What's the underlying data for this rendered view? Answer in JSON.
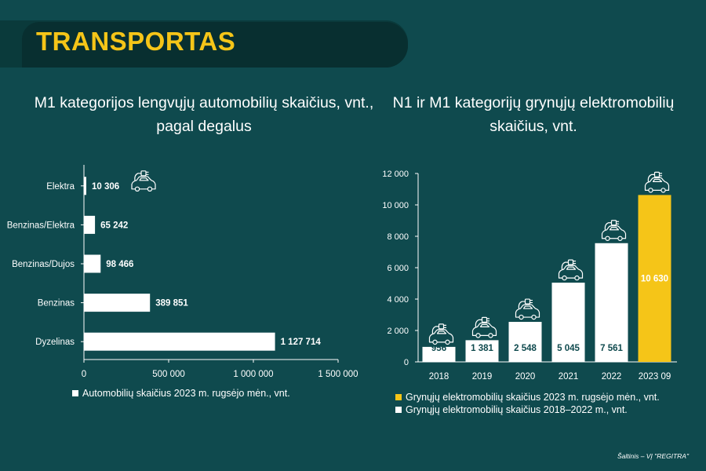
{
  "header": {
    "title": "TRANSPORTAS"
  },
  "colors": {
    "background": "#0f4a4e",
    "accent": "#f5c518",
    "bar": "#ffffff",
    "value_text": "#0f4a4e"
  },
  "chart_data": [
    {
      "type": "bar",
      "orientation": "horizontal",
      "title": "M1 kategorijos lengvųjų automobilių skaičius, vnt., pagal degalus",
      "categories": [
        "Elektra",
        "Benzinas/Elektra",
        "Benzinas/Dujos",
        "Benzinas",
        "Dyzelinas"
      ],
      "value_labels": [
        "10 306",
        "65 242",
        "98 466",
        "389 851",
        "1 127 714"
      ],
      "series": [
        {
          "name": "Automobilių skaičius 2023 m. rugsėjo mėn., vnt.",
          "values": [
            10306,
            65242,
            98466,
            389851,
            1127714
          ],
          "color": "#ffffff"
        }
      ],
      "xlim": [
        0,
        1500000
      ],
      "xticks": [
        0,
        500000,
        1000000,
        1500000
      ],
      "xtick_labels": [
        "0",
        "500 000",
        "1 000 000",
        "1 500 000"
      ],
      "grid": false,
      "legend_position": "bottom",
      "icon": "electric-car-icon"
    },
    {
      "type": "bar",
      "orientation": "vertical",
      "title": "N1 ir M1 kategorijų grynųjų elektromobilių skaičius, vnt.",
      "categories": [
        "2018",
        "2019",
        "2020",
        "2021",
        "2022",
        "2023 09"
      ],
      "values": [
        956,
        1381,
        2548,
        5045,
        7561,
        10630
      ],
      "value_labels": [
        "956",
        "1 381",
        "2 548",
        "5 045",
        "7 561",
        "10 630"
      ],
      "bar_colors": [
        "#ffffff",
        "#ffffff",
        "#ffffff",
        "#ffffff",
        "#ffffff",
        "#f5c518"
      ],
      "series": [
        {
          "name": "Grynųjų elektromobilių skaičius 2023 m. rugsėjo mėn., vnt.",
          "color": "#f5c518"
        },
        {
          "name": "Grynųjų elektromobilių skaičius 2018–2022 m., vnt.",
          "color": "#ffffff"
        }
      ],
      "ylim": [
        0,
        12000
      ],
      "yticks": [
        0,
        2000,
        4000,
        6000,
        8000,
        10000,
        12000
      ],
      "ytick_labels": [
        "0",
        "2 000",
        "4 000",
        "6 000",
        "8 000",
        "10 000",
        "12 000"
      ],
      "grid": false,
      "legend_position": "bottom",
      "icon": "electric-car-icon"
    }
  ],
  "source": "Šaltinis – VĮ \"REGITRA\""
}
